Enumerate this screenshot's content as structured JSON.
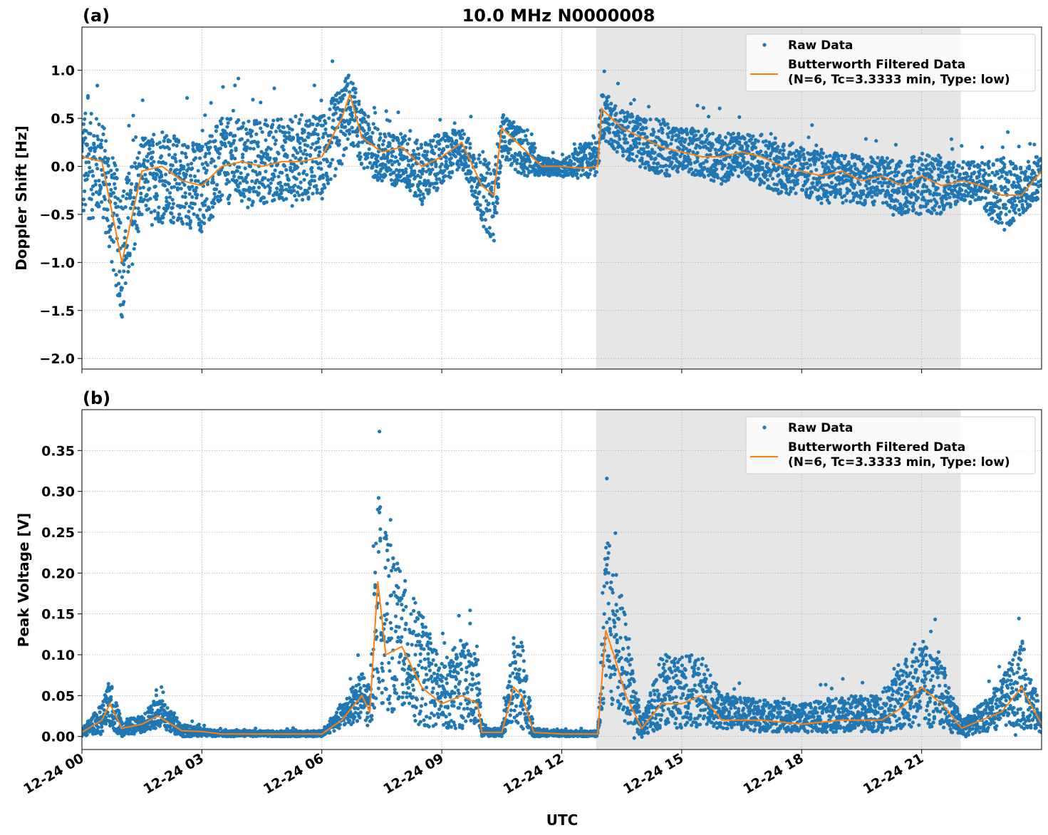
{
  "title": "10.0 MHz N0000008",
  "colors": {
    "raw": "#1f77b4",
    "filtered": "#ff7f0e",
    "shade": "#e6e6e6",
    "grid": "#b0b0b0"
  },
  "legend": {
    "raw": "Raw Data",
    "filtered_line1": "Butterworth Filtered Data",
    "filtered_line2": "(N=6, Tc=3.3333 min, Type: low)",
    "placement": "top-right"
  },
  "xlabel": "UTC",
  "x_ticks": [
    0,
    3,
    6,
    9,
    12,
    15,
    18,
    21
  ],
  "x_tick_labels": [
    "12-24 00",
    "12-24 03",
    "12-24 06",
    "12-24 09",
    "12-24 12",
    "12-24 15",
    "12-24 18",
    "12-24 21"
  ],
  "chart_data": [
    {
      "type": "scatter",
      "panel_label": "(a)",
      "ylabel": "Doppler Shift [Hz]",
      "xlim_hours": [
        0,
        24
      ],
      "ylim": [
        -2.11,
        1.45
      ],
      "grid": true,
      "y_ticks": [
        1.0,
        0.5,
        0.0,
        -0.5,
        -1.0,
        -1.5,
        -2.0
      ],
      "y_tick_labels": [
        "1.0",
        "0.5",
        "0.0",
        "−0.5",
        "−1.0",
        "−1.5",
        "−2.0"
      ],
      "shaded_interval_hours": [
        12.86,
        21.98
      ],
      "x_hours": [
        0,
        0.5,
        1.0,
        1.5,
        2.0,
        2.5,
        3.0,
        3.5,
        4.0,
        4.5,
        5.0,
        5.5,
        6.0,
        6.5,
        6.7,
        7.0,
        7.5,
        8.0,
        8.5,
        9.0,
        9.5,
        10.0,
        10.3,
        10.5,
        11.0,
        11.5,
        12.0,
        12.5,
        12.9,
        13.0,
        13.5,
        14.0,
        14.5,
        15.0,
        15.5,
        16.0,
        16.5,
        17.0,
        17.5,
        18.0,
        18.5,
        19.0,
        19.5,
        20.0,
        20.5,
        21.0,
        21.5,
        22.0,
        22.5,
        23.0,
        23.5,
        24.0
      ],
      "filtered": [
        0.1,
        0.05,
        -1.0,
        -0.05,
        0.0,
        -0.15,
        -0.2,
        0.0,
        0.05,
        0.0,
        0.05,
        0.05,
        0.1,
        0.5,
        0.75,
        0.3,
        0.15,
        0.2,
        0.0,
        0.1,
        0.25,
        -0.2,
        -0.3,
        0.4,
        0.2,
        0.0,
        0.0,
        -0.02,
        0.0,
        0.6,
        0.4,
        0.3,
        0.2,
        0.15,
        0.1,
        0.1,
        0.15,
        0.1,
        0.0,
        -0.05,
        -0.1,
        -0.05,
        -0.15,
        -0.1,
        -0.2,
        -0.1,
        -0.2,
        -0.15,
        -0.2,
        -0.3,
        -0.3,
        -0.05
      ],
      "raw_low": [
        -0.6,
        -0.5,
        -1.6,
        -0.5,
        -0.6,
        -0.6,
        -0.7,
        -0.4,
        -0.4,
        -0.4,
        -0.35,
        -0.35,
        -0.35,
        0.0,
        0.3,
        0.0,
        -0.2,
        -0.2,
        -0.4,
        -0.2,
        0.0,
        -0.6,
        -0.8,
        0.1,
        -0.1,
        -0.1,
        -0.1,
        -0.1,
        -0.1,
        0.3,
        0.1,
        0.0,
        -0.1,
        -0.1,
        -0.1,
        -0.2,
        -0.1,
        -0.2,
        -0.3,
        -0.3,
        -0.4,
        -0.35,
        -0.4,
        -0.4,
        -0.5,
        -0.5,
        -0.5,
        -0.35,
        -0.4,
        -0.7,
        -0.5,
        -0.3
      ],
      "raw_high": [
        0.6,
        0.5,
        -0.2,
        0.3,
        0.35,
        0.3,
        0.25,
        0.5,
        0.5,
        0.5,
        0.5,
        0.5,
        0.55,
        0.85,
        1.0,
        0.6,
        0.35,
        0.35,
        0.25,
        0.35,
        0.4,
        0.1,
        0.0,
        0.55,
        0.4,
        0.1,
        0.05,
        0.25,
        0.25,
        0.8,
        0.6,
        0.5,
        0.5,
        0.4,
        0.4,
        0.35,
        0.35,
        0.3,
        0.25,
        0.2,
        0.15,
        0.15,
        0.1,
        0.1,
        0.05,
        0.15,
        0.05,
        0.05,
        0.05,
        0.1,
        0.0,
        0.15
      ]
    },
    {
      "type": "scatter",
      "panel_label": "(b)",
      "ylabel": "Peak Voltage [V]",
      "xlim_hours": [
        0,
        24
      ],
      "ylim": [
        -0.016,
        0.4
      ],
      "grid": true,
      "y_ticks": [
        0.35,
        0.3,
        0.25,
        0.2,
        0.15,
        0.1,
        0.05,
        0.0
      ],
      "y_tick_labels": [
        "0.35",
        "0.30",
        "0.25",
        "0.20",
        "0.15",
        "0.10",
        "0.05",
        "0.00"
      ],
      "shaded_interval_hours": [
        12.86,
        21.98
      ],
      "x_hours": [
        0,
        0.5,
        0.7,
        1.0,
        1.5,
        1.9,
        2.5,
        3.0,
        3.5,
        6.0,
        6.5,
        7.0,
        7.2,
        7.4,
        7.6,
        8.0,
        8.5,
        9.0,
        9.5,
        9.9,
        10.0,
        10.5,
        10.8,
        11.0,
        11.3,
        12.0,
        12.9,
        13.1,
        13.3,
        13.6,
        14.0,
        14.5,
        15.0,
        15.5,
        16.0,
        17.0,
        18.0,
        19.0,
        20.0,
        20.5,
        21.0,
        21.5,
        22.0,
        22.5,
        23.0,
        23.5,
        24.0
      ],
      "filtered": [
        0.005,
        0.02,
        0.04,
        0.01,
        0.015,
        0.025,
        0.007,
        0.006,
        0.003,
        0.003,
        0.02,
        0.05,
        0.03,
        0.19,
        0.1,
        0.11,
        0.06,
        0.04,
        0.05,
        0.04,
        0.005,
        0.005,
        0.06,
        0.05,
        0.005,
        0.003,
        0.003,
        0.13,
        0.1,
        0.05,
        0.01,
        0.04,
        0.04,
        0.05,
        0.02,
        0.02,
        0.015,
        0.02,
        0.02,
        0.035,
        0.06,
        0.04,
        0.01,
        0.02,
        0.03,
        0.06,
        0.015
      ],
      "raw_low": [
        0.0,
        0.005,
        0.01,
        0.0,
        0.005,
        0.01,
        0.0,
        0.0,
        0.0,
        0.0,
        0.01,
        0.02,
        0.01,
        0.05,
        0.03,
        0.03,
        0.01,
        0.01,
        0.01,
        0.01,
        0.0,
        0.0,
        0.02,
        0.01,
        0.0,
        0.0,
        0.0,
        0.05,
        0.03,
        0.01,
        0.0,
        0.01,
        0.01,
        0.01,
        0.01,
        0.005,
        0.005,
        0.005,
        0.005,
        0.01,
        0.01,
        0.01,
        0.0,
        0.005,
        0.01,
        0.01,
        0.005
      ],
      "raw_high": [
        0.01,
        0.04,
        0.07,
        0.02,
        0.025,
        0.05,
        0.015,
        0.01,
        0.007,
        0.007,
        0.04,
        0.08,
        0.06,
        0.3,
        0.25,
        0.2,
        0.15,
        0.09,
        0.12,
        0.1,
        0.01,
        0.01,
        0.12,
        0.12,
        0.01,
        0.007,
        0.007,
        0.25,
        0.22,
        0.15,
        0.02,
        0.1,
        0.1,
        0.1,
        0.05,
        0.045,
        0.04,
        0.05,
        0.05,
        0.09,
        0.12,
        0.09,
        0.02,
        0.04,
        0.07,
        0.12,
        0.03
      ]
    }
  ]
}
